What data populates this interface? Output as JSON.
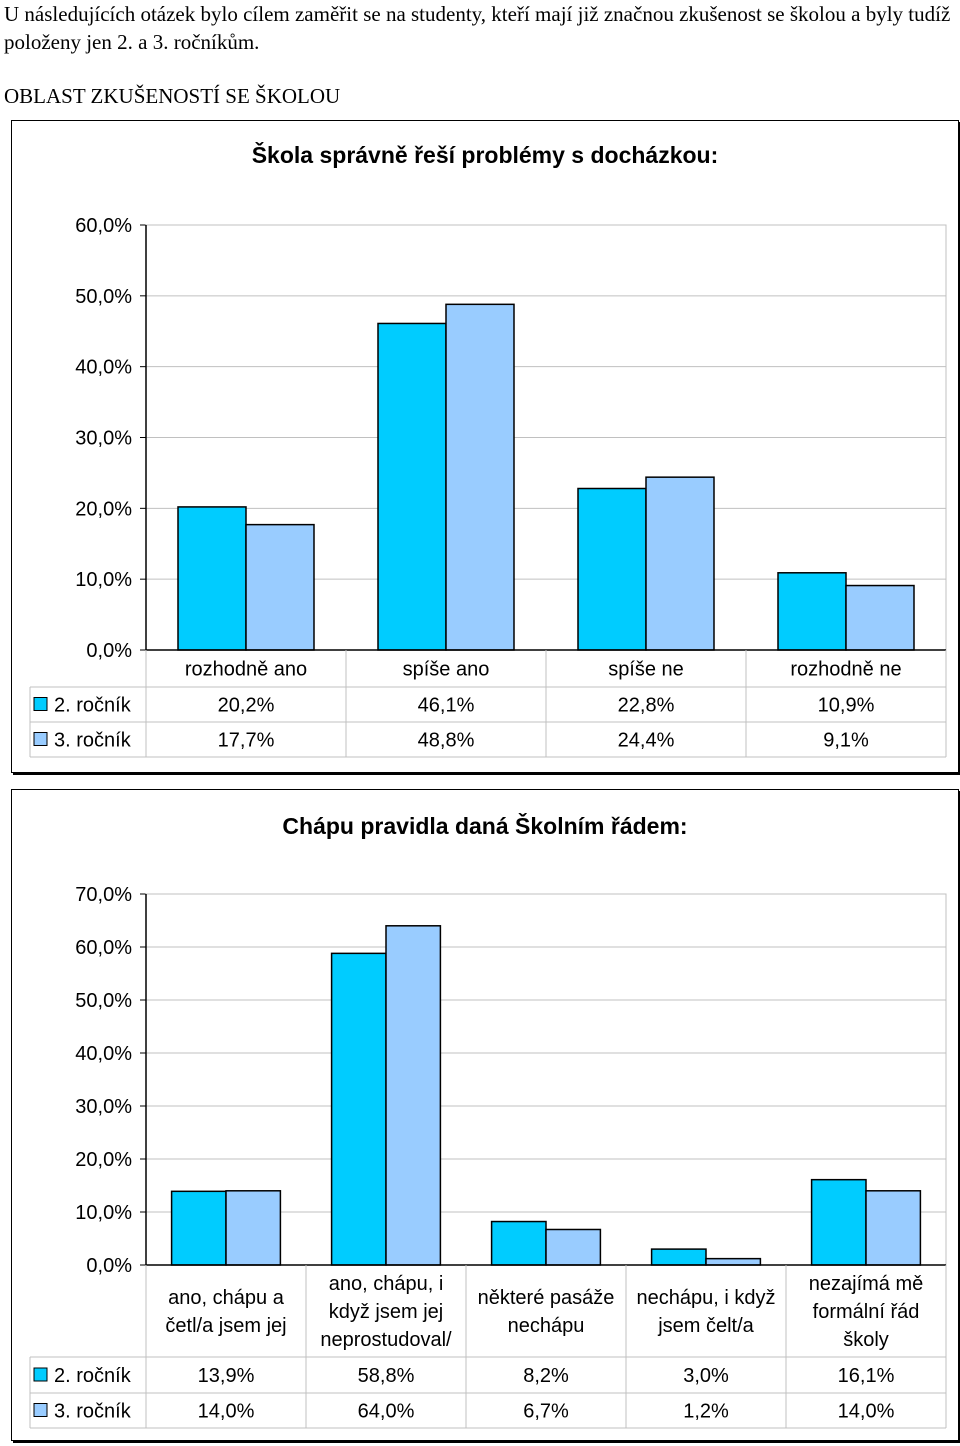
{
  "intro_text": "U následujících otázek bylo cílem zaměřit se na studenty, kteří mají již značnou zkušenost se školou a byly tudíž položeny jen 2. a 3. ročníkům.",
  "section_heading": "OBLAST ZKUŠENOSTÍ SE ŠKOLOU",
  "colors": {
    "series1": "#00CCFF",
    "series2": "#99CCFF",
    "grid": "#c0c0c0"
  },
  "chart_data": [
    {
      "type": "bar",
      "title": "Škola správně řeší problémy s docházkou:",
      "categories": [
        [
          "rozhodně ano"
        ],
        [
          "spíše ano"
        ],
        [
          "spíše ne"
        ],
        [
          "rozhodně ne"
        ]
      ],
      "series": [
        {
          "name": "2. ročník",
          "values": [
            20.2,
            46.1,
            22.8,
            10.9
          ],
          "labels": [
            "20,2%",
            "46,1%",
            "22,8%",
            "10,9%"
          ]
        },
        {
          "name": "3. ročník",
          "values": [
            17.7,
            48.8,
            24.4,
            9.1
          ],
          "labels": [
            "17,7%",
            "48,8%",
            "24,4%",
            "9,1%"
          ]
        }
      ],
      "ylim": [
        0,
        60
      ],
      "yticks": [
        "0,0%",
        "10,0%",
        "20,0%",
        "30,0%",
        "40,0%",
        "50,0%",
        "60,0%"
      ],
      "grid": true,
      "legend": "data-table"
    },
    {
      "type": "bar",
      "title": "Chápu pravidla daná Školním řádem:",
      "categories": [
        [
          "ano, chápu a",
          "četl/a jsem jej"
        ],
        [
          "ano, chápu, i",
          "když jsem jej",
          "neprostudoval/"
        ],
        [
          "některé pasáže",
          "nechápu"
        ],
        [
          "nechápu, i když",
          "jsem čelt/a"
        ],
        [
          "nezajímá mě",
          "formální řád",
          "školy"
        ]
      ],
      "series": [
        {
          "name": "2. ročník",
          "values": [
            13.9,
            58.8,
            8.2,
            3.0,
            16.1
          ],
          "labels": [
            "13,9%",
            "58,8%",
            "8,2%",
            "3,0%",
            "16,1%"
          ]
        },
        {
          "name": "3. ročník",
          "values": [
            14.0,
            64.0,
            6.7,
            1.2,
            14.0
          ],
          "labels": [
            "14,0%",
            "64,0%",
            "6,7%",
            "1,2%",
            "14,0%"
          ]
        }
      ],
      "ylim": [
        0,
        70
      ],
      "yticks": [
        "0,0%",
        "10,0%",
        "20,0%",
        "30,0%",
        "40,0%",
        "50,0%",
        "60,0%",
        "70,0%"
      ],
      "grid": true,
      "legend": "data-table"
    }
  ]
}
